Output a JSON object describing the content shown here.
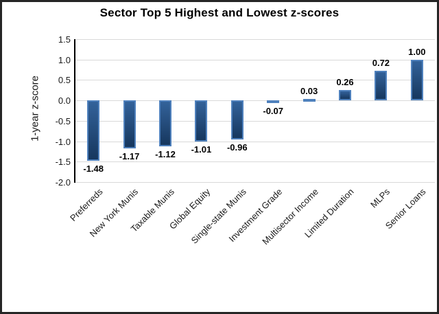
{
  "chart_data": {
    "type": "bar",
    "title": "Sector Top 5 Highest and Lowest z-scores",
    "xlabel": "",
    "ylabel": "1-year z-score",
    "categories": [
      "Preferreds",
      "New York Munis",
      "Taxable Munis",
      "Global Equity",
      "Single-state Munis",
      "Investment Grade",
      "Multisector Income",
      "Limited Duration",
      "MLPs",
      "Senior Loans"
    ],
    "values": [
      -1.48,
      -1.17,
      -1.12,
      -1.01,
      -0.96,
      -0.07,
      0.03,
      0.26,
      0.72,
      1.0
    ],
    "data_labels": [
      "-1.48",
      "-1.17",
      "-1.12",
      "-1.01",
      "-0.96",
      "-0.07",
      "0.03",
      "0.26",
      "0.72",
      "1.00"
    ],
    "ylim": [
      -2.0,
      1.5
    ],
    "ytick_step": 0.5,
    "ytick_labels": [
      "1.5",
      "1.0",
      "0.5",
      "0.0",
      "-0.5",
      "-1.0",
      "-1.5",
      "-2.0"
    ],
    "grid": true,
    "legend_position": "none",
    "colors": {
      "bar_border": "#4f81bd",
      "bar_fill_top": "#33629a",
      "bar_fill_bottom": "#16375e",
      "gridline": "#d9d9d9",
      "axis_line": "#000000",
      "frame_border": "#262626",
      "text": "#000000",
      "background": "#ffffff"
    }
  }
}
